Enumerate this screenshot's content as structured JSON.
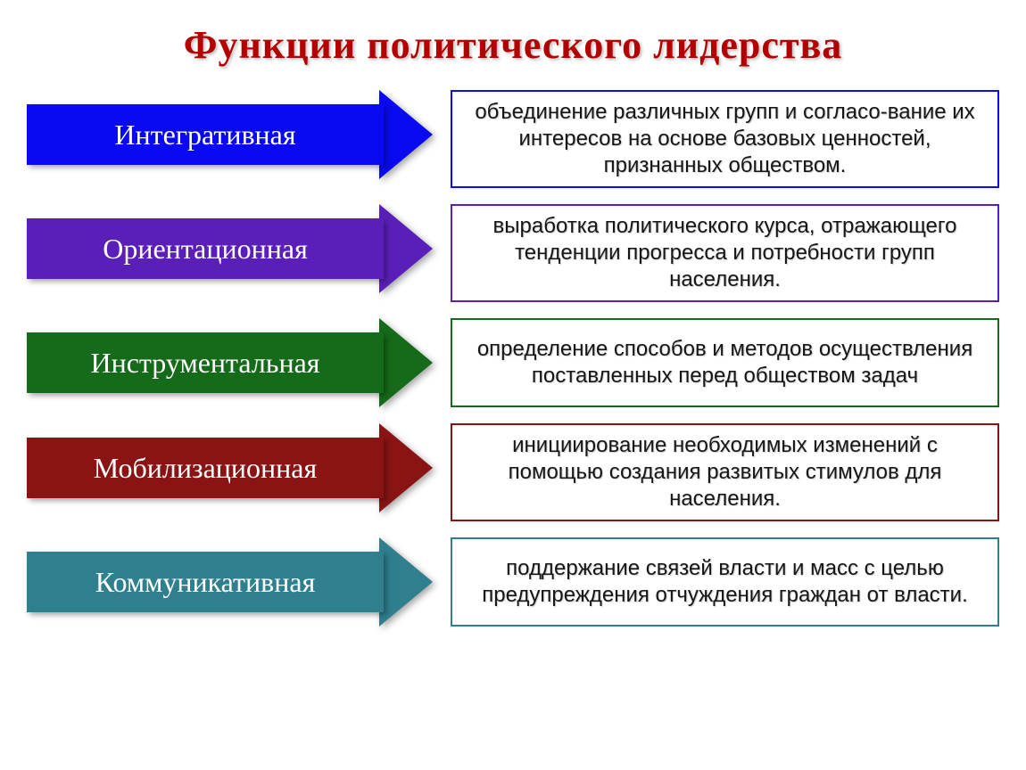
{
  "title": {
    "text": "Функции политического лидерства",
    "color": "#b30000",
    "fontsize": 44
  },
  "layout": {
    "arrow_body_width": 400,
    "arrow_body_height": 68,
    "arrow_head_width": 60,
    "arrow_total_height": 100,
    "row_gap": 18,
    "label_fontsize": 32,
    "desc_fontsize": 24
  },
  "rows": [
    {
      "label": "Интегративная",
      "arrow_color": "#0a0af0",
      "border_color": "#0a0af0",
      "desc": "объединение различных групп и согласо-вание их интересов на основе базовых ценностей, признанных обществом."
    },
    {
      "label": "Ориентационная",
      "arrow_color": "#5a1fb8",
      "border_color": "#5a1fb8",
      "desc": "выработка политического курса, отражающего тенденции прогресса и потребности групп населения."
    },
    {
      "label": "Инструментальная",
      "arrow_color": "#156b1a",
      "border_color": "#156b1a",
      "desc": "определение способов и методов осуществления поставленных перед обществом задач"
    },
    {
      "label": "Мобилизационная",
      "arrow_color": "#8a1414",
      "border_color": "#8a1414",
      "desc": "инициирование необходимых изменений с помощью создания развитых стимулов для населения."
    },
    {
      "label": "Коммуникативная",
      "arrow_color": "#2f7f8f",
      "border_color": "#2f7f8f",
      "desc": "поддержание связей власти и масс с целью предупреждения отчуждения граждан от власти."
    }
  ]
}
